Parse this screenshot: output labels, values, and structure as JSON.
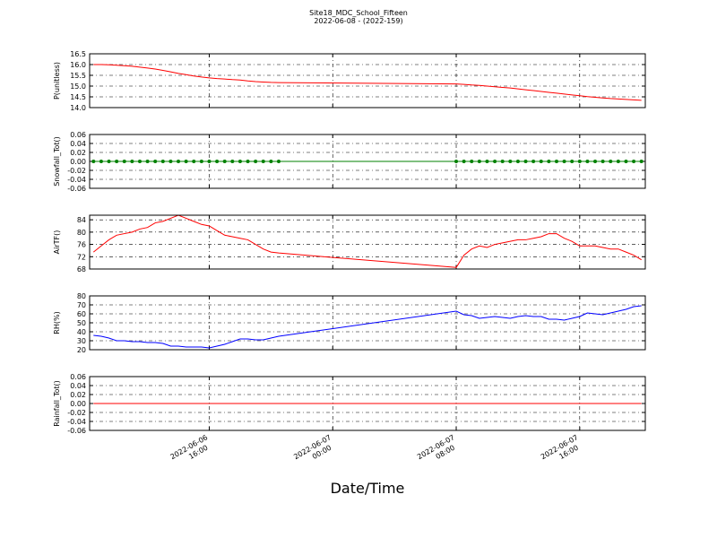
{
  "figure": {
    "title": "Site18_MDC_School_Fifteen",
    "subtitle": "2022-06-08 - (2022-159)",
    "x_label": "Date/Time",
    "x": [
      "2022-06-06 08:30",
      "2022-06-06 09:00",
      "2022-06-06 09:30",
      "2022-06-06 10:00",
      "2022-06-06 10:30",
      "2022-06-06 11:00",
      "2022-06-06 11:30",
      "2022-06-06 12:00",
      "2022-06-06 12:30",
      "2022-06-06 13:00",
      "2022-06-06 13:30",
      "2022-06-06 14:00",
      "2022-06-06 14:30",
      "2022-06-06 15:00",
      "2022-06-06 15:30",
      "2022-06-06 16:00",
      "2022-06-06 16:30",
      "2022-06-06 17:00",
      "2022-06-06 17:30",
      "2022-06-06 18:00",
      "2022-06-06 18:30",
      "2022-06-06 19:00",
      "2022-06-06 19:30",
      "2022-06-06 20:00",
      "2022-06-06 20:30",
      "2022-06-07 08:00",
      "2022-06-07 08:30",
      "2022-06-07 09:00",
      "2022-06-07 09:30",
      "2022-06-07 10:00",
      "2022-06-07 10:30",
      "2022-06-07 11:00",
      "2022-06-07 11:30",
      "2022-06-07 12:00",
      "2022-06-07 12:30",
      "2022-06-07 13:00",
      "2022-06-07 13:30",
      "2022-06-07 14:00",
      "2022-06-07 14:30",
      "2022-06-07 15:00",
      "2022-06-07 15:30",
      "2022-06-07 16:00",
      "2022-06-07 16:30",
      "2022-06-07 17:00",
      "2022-06-07 17:30",
      "2022-06-07 18:00",
      "2022-06-07 18:30",
      "2022-06-07 19:00",
      "2022-06-07 19:30",
      "2022-06-07 20:00"
    ],
    "xlim": [
      "2022-06-06 08:15",
      "2022-06-07 20:15"
    ],
    "xticks": [
      "2022-06-06 16:00",
      "2022-06-07 00:00",
      "2022-06-07 08:00",
      "2022-06-07 16:00"
    ]
  },
  "chart_data": [
    {
      "type": "line",
      "y_label": "P(unitless)",
      "color": "#ff0000",
      "marker": false,
      "grid": true,
      "ylim": [
        14.0,
        16.5
      ],
      "yticks": [
        {
          "value": 14,
          "label": "14.0"
        },
        14.5,
        {
          "value": 15,
          "label": "15.0"
        },
        15.5,
        {
          "value": 16,
          "label": "16.0"
        },
        16.5
      ],
      "values": [
        16.0,
        16.0,
        15.99,
        15.97,
        15.95,
        15.92,
        15.88,
        15.84,
        15.79,
        15.73,
        15.66,
        15.59,
        15.53,
        15.47,
        15.42,
        15.38,
        15.35,
        15.33,
        15.3,
        15.28,
        15.24,
        15.21,
        15.19,
        15.17,
        15.16,
        15.1,
        15.08,
        15.05,
        15.03,
        15.0,
        14.97,
        14.94,
        14.91,
        14.87,
        14.83,
        14.79,
        14.75,
        14.71,
        14.67,
        14.63,
        14.59,
        14.55,
        14.51,
        14.48,
        14.45,
        14.42,
        14.4,
        14.38,
        14.36,
        14.34
      ]
    },
    {
      "type": "line",
      "y_label": "Snowfall_Tot()",
      "color": "#008000",
      "marker": true,
      "grid": true,
      "ylim": [
        -0.06,
        0.06
      ],
      "yticks": [
        -0.06,
        -0.04,
        -0.02,
        {
          "value": 0,
          "label": "0.00"
        },
        0.02,
        0.04,
        0.06
      ],
      "values": [
        0,
        0,
        0,
        0,
        0,
        0,
        0,
        0,
        0,
        0,
        0,
        0,
        0,
        0,
        0,
        0,
        0,
        0,
        0,
        0,
        0,
        0,
        0,
        0,
        0,
        0,
        0,
        0,
        0,
        0,
        0,
        0,
        0,
        0,
        0,
        0,
        0,
        0,
        0,
        0,
        0,
        0,
        0,
        0,
        0,
        0,
        0,
        0,
        0,
        0
      ]
    },
    {
      "type": "line",
      "y_label": "AirTF()",
      "color": "#ff0000",
      "marker": false,
      "grid": true,
      "ylim": [
        68,
        85.5
      ],
      "yticks": [
        68,
        72,
        76,
        80,
        84
      ],
      "values": [
        73.5,
        75.5,
        77.5,
        79,
        79.5,
        80,
        81,
        81.5,
        83,
        83.5,
        84.5,
        85.5,
        84.5,
        83.5,
        82.5,
        82,
        80.5,
        79,
        78.5,
        78,
        77.5,
        76,
        74.5,
        73.5,
        73.2,
        68.5,
        72.5,
        74.5,
        75.5,
        75,
        76,
        76.5,
        77,
        77.5,
        77.5,
        78,
        78.5,
        79.5,
        79.5,
        78,
        77,
        75.5,
        75.5,
        75.5,
        75,
        74.5,
        74.5,
        73.5,
        72.5,
        71
      ]
    },
    {
      "type": "line",
      "y_label": "RH(%)",
      "color": "#0000ff",
      "marker": false,
      "grid": true,
      "ylim": [
        20,
        80
      ],
      "yticks": [
        20,
        30,
        40,
        50,
        60,
        70,
        80
      ],
      "values": [
        36,
        35,
        33,
        30,
        30,
        29,
        29,
        28,
        28,
        27,
        24,
        24,
        23,
        23,
        23,
        22,
        24,
        26,
        29,
        32,
        32,
        31,
        31,
        33,
        35,
        63,
        59,
        58,
        55,
        56,
        57,
        56,
        55,
        57,
        58,
        57,
        57,
        54,
        54,
        53,
        55,
        57,
        61,
        60,
        59,
        61,
        63,
        65,
        68,
        69
      ]
    },
    {
      "type": "line",
      "y_label": "Rainfall_Tot()",
      "color": "#ff0000",
      "marker": false,
      "grid": true,
      "ylim": [
        -0.06,
        0.06
      ],
      "yticks": [
        -0.06,
        -0.04,
        -0.02,
        {
          "value": 0,
          "label": "0.00"
        },
        0.02,
        0.04,
        0.06
      ],
      "values": [
        0,
        0,
        0,
        0,
        0,
        0,
        0,
        0,
        0,
        0,
        0,
        0,
        0,
        0,
        0,
        0,
        0,
        0,
        0,
        0,
        0,
        0,
        0,
        0,
        0,
        0,
        0,
        0,
        0,
        0,
        0,
        0,
        0,
        0,
        0,
        0,
        0,
        0,
        0,
        0,
        0,
        0,
        0,
        0,
        0,
        0,
        0,
        0,
        0,
        0
      ]
    }
  ]
}
